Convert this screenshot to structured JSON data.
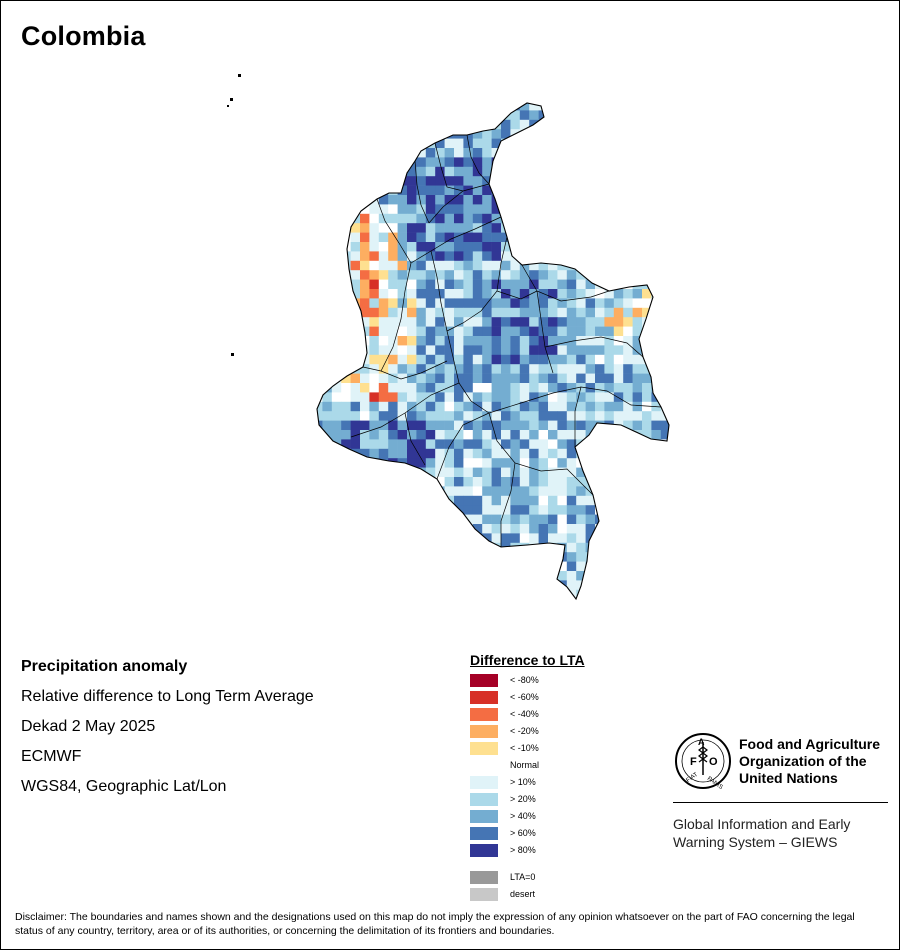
{
  "map": {
    "title": "Colombia",
    "info_lines": [
      "Precipitation anomaly",
      "Relative difference to Long Term Average",
      "Dekad 2 May 2025",
      "ECMWF",
      "WGS84, Geographic Lat/Lon"
    ]
  },
  "legend": {
    "title": "Difference to LTA",
    "items": [
      {
        "label": "< -80%",
        "color": "#a50026"
      },
      {
        "label": "< -60%",
        "color": "#d73027"
      },
      {
        "label": "< -40%",
        "color": "#f46d43"
      },
      {
        "label": "< -20%",
        "color": "#fdae61"
      },
      {
        "label": "< -10%",
        "color": "#fee090"
      },
      {
        "label": "Normal",
        "color": "#ffffff"
      },
      {
        "label": "> 10%",
        "color": "#e0f3f8"
      },
      {
        "label": "> 20%",
        "color": "#abd9e9"
      },
      {
        "label": "> 40%",
        "color": "#74add1"
      },
      {
        "label": "> 60%",
        "color": "#4575b4"
      },
      {
        "label": "> 80%",
        "color": "#313695"
      }
    ],
    "extra_items": [
      {
        "label": "LTA=0",
        "color": "#999999"
      },
      {
        "label": "desert",
        "color": "#c8c8c8"
      }
    ]
  },
  "logo": {
    "org_name_lines": [
      "Food and Agriculture",
      "Organization of the",
      "United Nations"
    ],
    "logo_text": "FAO",
    "motto": "FIAT PANIS",
    "program_lines": [
      "Global Information and Early",
      "Warning System – GIEWS"
    ]
  },
  "disclaimer": "Disclaimer: The boundaries and names shown and the designations used on this map do not imply the expression of any opinion whatsoever on the part of FAO concerning the legal status of any country, territory, area or of its authorities, or concerning the delimitation of its frontiers and boundaries."
}
